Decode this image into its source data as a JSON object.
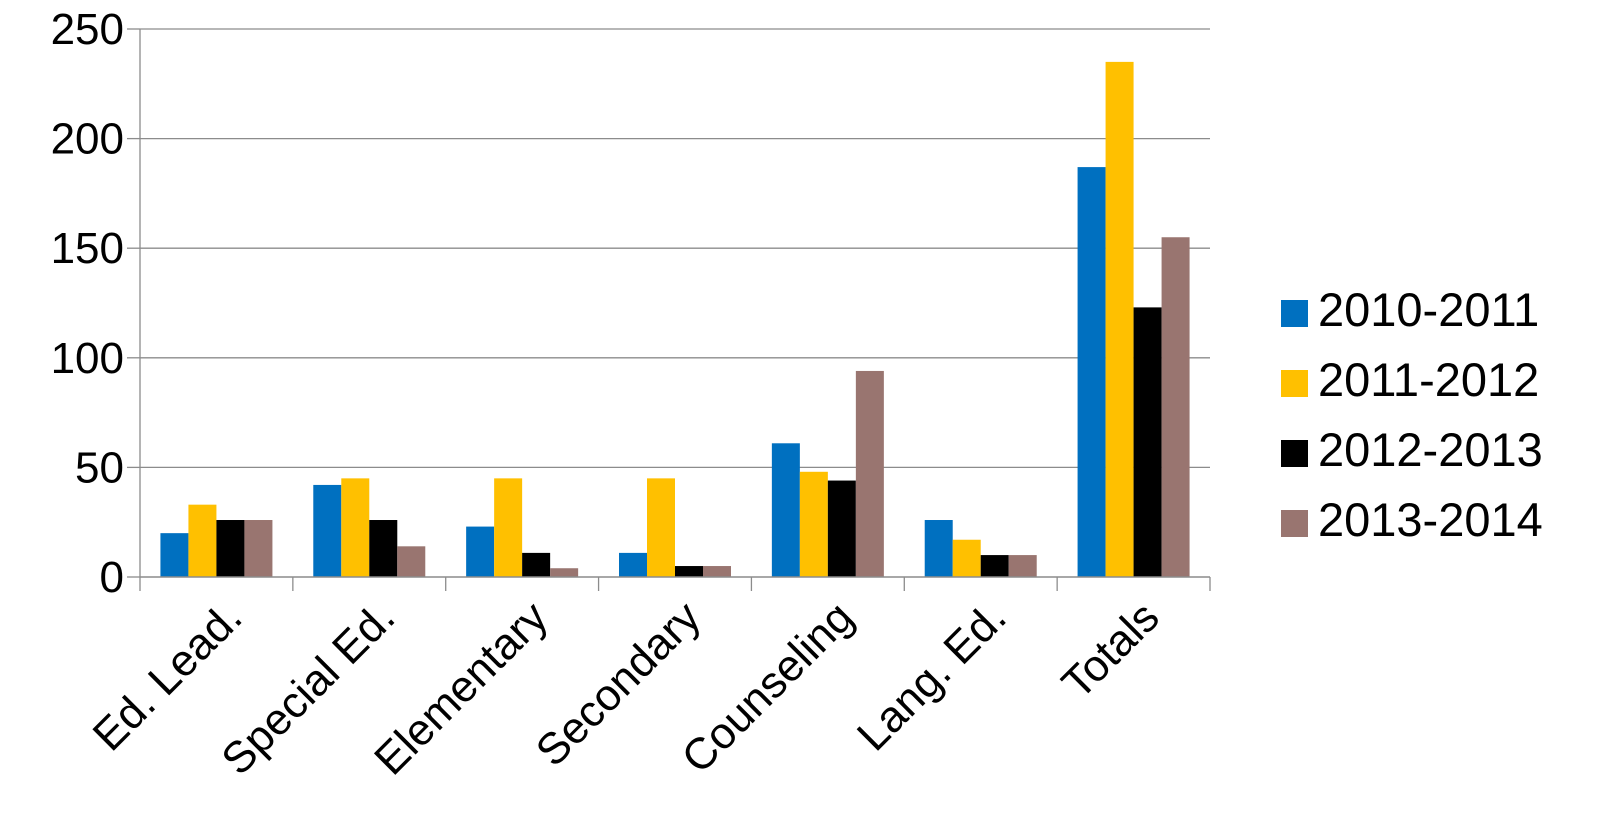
{
  "chart_data": {
    "type": "bar",
    "title": "",
    "xlabel": "",
    "ylabel": "",
    "categories": [
      "Ed. Lead.",
      "Special Ed.",
      "Elementary",
      "Secondary",
      "Counseling",
      "Lang. Ed.",
      "Totals"
    ],
    "series": [
      {
        "name": "2010-2011",
        "color": "#0070C0",
        "values": [
          20,
          42,
          23,
          11,
          61,
          26,
          187
        ]
      },
      {
        "name": "2011-2012",
        "color": "#FFC000",
        "values": [
          33,
          45,
          45,
          45,
          48,
          17,
          235
        ]
      },
      {
        "name": "2012-2013",
        "color": "#000000",
        "values": [
          26,
          26,
          11,
          5,
          44,
          10,
          123
        ]
      },
      {
        "name": "2013-2014",
        "color": "#997570",
        "values": [
          26,
          14,
          4,
          5,
          94,
          10,
          155
        ]
      }
    ],
    "ylim": [
      0,
      250
    ],
    "yticks": [
      0,
      50,
      100,
      150,
      200,
      250
    ],
    "grid": true,
    "gridline_color": "#8C8C8C",
    "legend_position": "right"
  }
}
